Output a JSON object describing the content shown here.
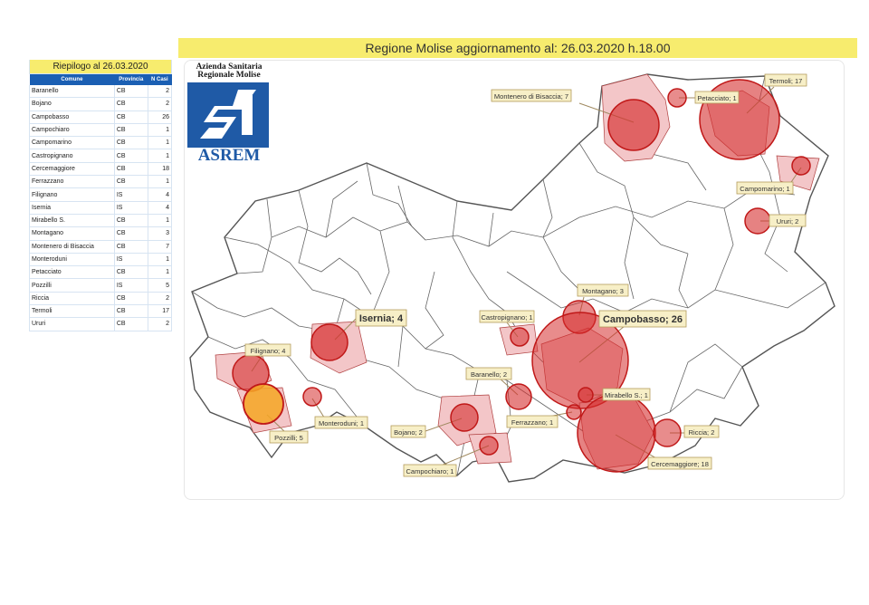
{
  "header": {
    "title": "Regione Molise aggiornamento al: 26.03.2020 h.18.00"
  },
  "summary": {
    "title": "Riepilogo al 26.03.2020",
    "columns": [
      "Comune",
      "Provincia",
      "N Casi"
    ],
    "rows": [
      [
        "Baranello",
        "CB",
        "2"
      ],
      [
        "Bojano",
        "CB",
        "2"
      ],
      [
        "Campobasso",
        "CB",
        "26"
      ],
      [
        "Campochiaro",
        "CB",
        "1"
      ],
      [
        "Campomarino",
        "CB",
        "1"
      ],
      [
        "Castropignano",
        "CB",
        "1"
      ],
      [
        "Cercemaggiore",
        "CB",
        "18"
      ],
      [
        "Ferrazzano",
        "CB",
        "1"
      ],
      [
        "Filignano",
        "IS",
        "4"
      ],
      [
        "Isernia",
        "IS",
        "4"
      ],
      [
        "Mirabello S.",
        "CB",
        "1"
      ],
      [
        "Montagano",
        "CB",
        "3"
      ],
      [
        "Montenero di Bisaccia",
        "CB",
        "7"
      ],
      [
        "Monteroduni",
        "IS",
        "1"
      ],
      [
        "Petacciato",
        "CB",
        "1"
      ],
      [
        "Pozzilli",
        "IS",
        "5"
      ],
      [
        "Riccia",
        "CB",
        "2"
      ],
      [
        "Termoli",
        "CB",
        "17"
      ],
      [
        "Ururi",
        "CB",
        "2"
      ]
    ]
  },
  "logo": {
    "line1": "Azienda Sanitaria",
    "line2": "Regionale Molise",
    "name": "ASREM"
  },
  "map": {
    "labels": {
      "montenero": "Montenero di Bisaccia; 7",
      "petacciato": "Petacciato; 1",
      "termoli": "Termoli; 17",
      "campomarino": "Campomarino; 1",
      "ururi": "Ururi; 2",
      "isernia": "Isernia; 4",
      "castropignano": "Castropignano; 1",
      "montagano": "Montagano; 3",
      "campobasso": "Campobasso; 26",
      "filignano": "Filignano; 4",
      "baranello": "Baranello; 2",
      "mirabello": "Mirabello S.; 1",
      "riccia": "Riccia; 2",
      "ferrazzano": "Ferrazzano; 1",
      "monteroduni": "Monteroduni; 1",
      "bojano": "Bojano; 2",
      "pozzilli": "Pozzilli; 5",
      "cercemaggiore": "Cercemaggiore; 18",
      "campochiaro": "Campochiaro; 1"
    },
    "colors": {
      "case_circle": "#d62e2e",
      "highlight_circle": "#f5a623",
      "affected_area": "#f3c6c8",
      "label_box": "#f7efc7"
    }
  }
}
